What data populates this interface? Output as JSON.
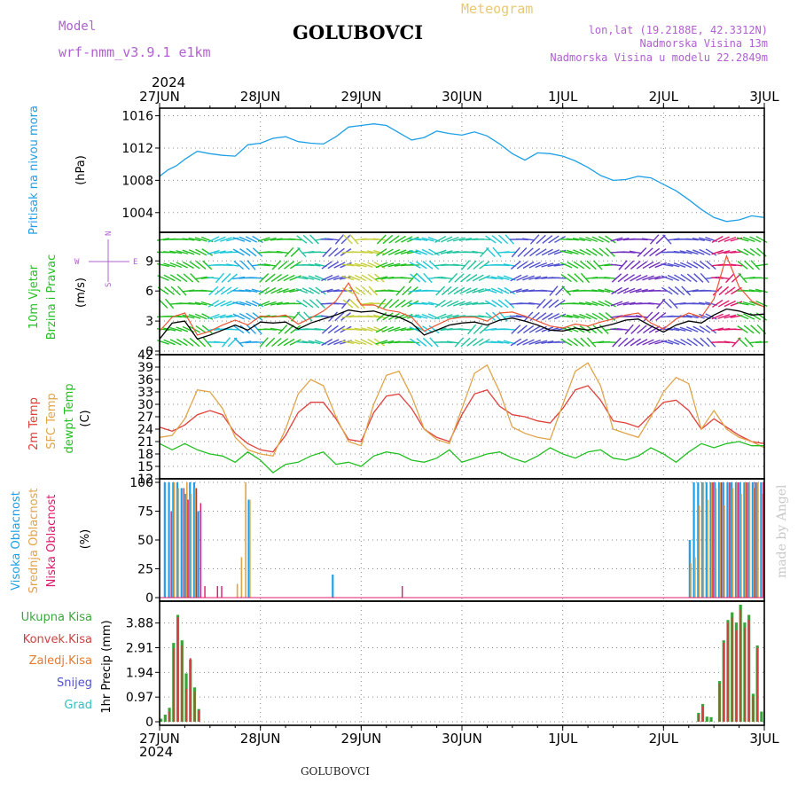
{
  "header": {
    "model_label": "Model",
    "model_name": "wrf-nmm_v3.9.1 e1km",
    "station": "GOLUBOVCI",
    "product": "Meteogram",
    "lonlat": "lon,lat (19.2188E, 42.3312N)",
    "elevation": "Nadmorska Visina 13m",
    "model_elevation": "Nadmorska Visina u modelu 22.2849m",
    "credit": "made by Angel",
    "footer_station": "GOLUBOVCI"
  },
  "colors": {
    "pressure": "#1ea0e6",
    "temp2m": "#e0403c",
    "sfc_temp": "#e0a44a",
    "dewpoint": "#22c022",
    "wind_speed": "#000000",
    "wind_gust": "#ee5533",
    "cloud_high": "#1ea0e6",
    "cloud_mid": "#e0a44a",
    "cloud_low": "#e0186c",
    "precip_total": "#3aa63a",
    "precip_conv": "#d04040",
    "precip_frozen": "#e87a2a",
    "snow": "#5050d0",
    "graupel": "#30c0c0",
    "title": "#b060d0",
    "product": "#e8c870"
  },
  "time_axis": {
    "year": "2024",
    "ticks": [
      "27JUN",
      "28JUN",
      "29JUN",
      "30JUN",
      "1JUL",
      "2JUL",
      "3JUL"
    ],
    "start_hour": 0,
    "end_hour": 144
  },
  "chart_data": [
    {
      "id": "pressure",
      "type": "line",
      "ylabel_name": "Pritisak na nivou mora",
      "ylabel_unit": "(hPa)",
      "ylim": [
        1002,
        1016.5
      ],
      "yticks": [
        1004,
        1008,
        1012,
        1016
      ],
      "grid": true,
      "x": [
        0,
        2,
        4,
        6,
        9,
        12,
        15,
        18,
        21,
        24,
        27,
        30,
        33,
        36,
        39,
        42,
        45,
        48,
        51,
        54,
        57,
        60,
        63,
        66,
        69,
        72,
        75,
        78,
        81,
        84,
        87,
        90,
        93,
        96,
        99,
        102,
        105,
        108,
        111,
        114,
        117,
        120,
        123,
        126,
        129,
        132,
        135,
        138,
        141,
        144
      ],
      "values": [
        1008.5,
        1009.3,
        1009.8,
        1010.6,
        1011.6,
        1011.3,
        1011.1,
        1011.0,
        1012.4,
        1012.6,
        1013.2,
        1013.4,
        1012.8,
        1012.6,
        1012.5,
        1013.4,
        1014.6,
        1014.8,
        1015.0,
        1014.8,
        1013.9,
        1013.0,
        1013.3,
        1014.1,
        1013.8,
        1013.6,
        1014.0,
        1013.5,
        1012.5,
        1011.3,
        1010.5,
        1011.4,
        1011.3,
        1011.0,
        1010.4,
        1009.6,
        1008.6,
        1008.0,
        1008.1,
        1008.5,
        1008.3,
        1007.5,
        1006.7,
        1005.6,
        1004.4,
        1003.4,
        1002.9,
        1003.1,
        1003.6,
        1003.4
      ]
    },
    {
      "id": "wind",
      "type": "line",
      "ylabel_name": [
        "10m Vjetar",
        "Brzina i Pravac"
      ],
      "ylabel_unit": "(m/s)",
      "compass": {
        "w": "W",
        "e": "E",
        "n": "N",
        "s": "S"
      },
      "ylim": [
        0,
        11.5
      ],
      "yticks": [
        0,
        3,
        6,
        9
      ],
      "grid": true,
      "series": [
        {
          "name": "speed",
          "x": [
            0,
            3,
            6,
            9,
            12,
            15,
            18,
            21,
            24,
            27,
            30,
            33,
            36,
            39,
            42,
            45,
            48,
            51,
            54,
            57,
            60,
            63,
            66,
            69,
            72,
            75,
            78,
            81,
            84,
            87,
            90,
            93,
            96,
            99,
            102,
            105,
            108,
            111,
            114,
            117,
            120,
            123,
            126,
            129,
            132,
            135,
            138,
            141,
            144
          ],
          "values": [
            1.2,
            2.8,
            3.0,
            1.2,
            1.6,
            2.1,
            2.6,
            2.1,
            2.9,
            2.8,
            2.9,
            2.2,
            2.8,
            3.2,
            3.6,
            4.1,
            3.9,
            4.0,
            3.6,
            3.4,
            2.8,
            1.6,
            2.1,
            2.6,
            2.8,
            2.9,
            2.6,
            3.1,
            3.3,
            3.0,
            2.6,
            2.1,
            2.0,
            2.3,
            2.1,
            2.4,
            2.7,
            3.1,
            3.2,
            2.5,
            1.9,
            2.6,
            3.0,
            2.8,
            3.6,
            4.2,
            4.0,
            3.6,
            3.7
          ]
        },
        {
          "name": "gust",
          "x": [
            0,
            3,
            6,
            9,
            12,
            15,
            18,
            21,
            24,
            27,
            30,
            33,
            36,
            39,
            42,
            45,
            48,
            51,
            54,
            57,
            60,
            63,
            66,
            69,
            72,
            75,
            78,
            81,
            84,
            87,
            90,
            93,
            96,
            99,
            102,
            105,
            108,
            111,
            114,
            117,
            120,
            123,
            126,
            129,
            132,
            135,
            138,
            141,
            144
          ],
          "values": [
            2.0,
            3.4,
            3.8,
            1.6,
            2.0,
            2.6,
            3.1,
            2.6,
            3.5,
            3.4,
            3.6,
            2.7,
            3.3,
            4.0,
            5.0,
            6.8,
            4.6,
            4.6,
            4.1,
            3.9,
            3.4,
            2.0,
            2.6,
            3.2,
            3.4,
            3.4,
            3.0,
            3.8,
            3.9,
            3.5,
            3.0,
            2.5,
            2.3,
            2.7,
            2.5,
            2.9,
            3.2,
            3.6,
            3.8,
            2.8,
            2.2,
            3.2,
            3.8,
            3.4,
            5.2,
            9.5,
            6.4,
            5.0,
            4.4
          ]
        }
      ],
      "barb_bands": [
        {
          "from": 0,
          "to": 12,
          "color": "#22c022"
        },
        {
          "from": 12,
          "to": 18,
          "color": "#1ec8d8"
        },
        {
          "from": 18,
          "to": 24,
          "color": "#1ea0e6"
        },
        {
          "from": 24,
          "to": 33,
          "color": "#22c022"
        },
        {
          "from": 33,
          "to": 39,
          "color": "#22c4a0"
        },
        {
          "from": 39,
          "to": 44,
          "color": "#5050d0"
        },
        {
          "from": 44,
          "to": 52,
          "color": "#c8d040"
        },
        {
          "from": 52,
          "to": 60,
          "color": "#22c022"
        },
        {
          "from": 60,
          "to": 66,
          "color": "#1ec8d8"
        },
        {
          "from": 66,
          "to": 78,
          "color": "#22c4a0"
        },
        {
          "from": 78,
          "to": 84,
          "color": "#1ec8d8"
        },
        {
          "from": 84,
          "to": 96,
          "color": "#5050d0"
        },
        {
          "from": 96,
          "to": 108,
          "color": "#22c022"
        },
        {
          "from": 108,
          "to": 120,
          "color": "#7030c0"
        },
        {
          "from": 120,
          "to": 132,
          "color": "#5050d0"
        },
        {
          "from": 132,
          "to": 138,
          "color": "#e0186c"
        },
        {
          "from": 138,
          "to": 144,
          "color": "#22c022"
        }
      ]
    },
    {
      "id": "temperature",
      "type": "line",
      "ylabel_names": [
        "2m Temp",
        "SFC Temp",
        "dewpt Temp"
      ],
      "ylabel_unit": "(C)",
      "ylim": [
        12,
        42
      ],
      "yticks": [
        12,
        15,
        18,
        21,
        24,
        27,
        30,
        33,
        36,
        39,
        42
      ],
      "grid": true,
      "series": [
        {
          "name": "2m Temp",
          "x": [
            0,
            3,
            6,
            9,
            12,
            15,
            18,
            21,
            24,
            27,
            30,
            33,
            36,
            39,
            42,
            45,
            48,
            51,
            54,
            57,
            60,
            63,
            66,
            69,
            72,
            75,
            78,
            81,
            84,
            87,
            90,
            93,
            96,
            99,
            102,
            105,
            108,
            111,
            114,
            117,
            120,
            123,
            126,
            129,
            132,
            135,
            138,
            141,
            144
          ],
          "values": [
            24.5,
            23.5,
            25.0,
            27.5,
            28.5,
            27.5,
            23.0,
            20.5,
            19.0,
            18.5,
            22.5,
            28.0,
            30.5,
            30.5,
            26.5,
            21.5,
            21.0,
            28.0,
            32.0,
            32.5,
            29.0,
            24.0,
            22.0,
            21.0,
            27.5,
            32.5,
            33.5,
            29.5,
            27.5,
            27.0,
            26.0,
            25.5,
            29.0,
            33.5,
            34.5,
            31.0,
            26.0,
            25.5,
            24.5,
            27.5,
            30.5,
            31.0,
            28.5,
            24.0,
            26.5,
            24.5,
            22.5,
            21.0,
            20.5
          ]
        },
        {
          "name": "SFC Temp",
          "x": [
            0,
            3,
            6,
            9,
            12,
            15,
            18,
            21,
            24,
            27,
            30,
            33,
            36,
            39,
            42,
            45,
            48,
            51,
            54,
            57,
            60,
            63,
            66,
            69,
            72,
            75,
            78,
            81,
            84,
            87,
            90,
            93,
            96,
            99,
            102,
            105,
            108,
            111,
            114,
            117,
            120,
            123,
            126,
            129,
            132,
            135,
            138,
            141,
            144
          ],
          "values": [
            22.0,
            22.5,
            26.5,
            33.5,
            33.0,
            29.0,
            22.0,
            19.0,
            18.0,
            17.5,
            24.0,
            32.5,
            36.0,
            34.5,
            27.0,
            21.0,
            20.0,
            30.0,
            37.0,
            38.0,
            32.0,
            24.0,
            21.5,
            20.5,
            29.0,
            37.5,
            39.5,
            33.0,
            24.5,
            23.0,
            22.0,
            21.5,
            30.0,
            38.0,
            40.0,
            34.5,
            24.0,
            23.0,
            22.0,
            27.0,
            33.0,
            36.5,
            35.0,
            24.0,
            28.5,
            24.0,
            22.0,
            21.0,
            19.5
          ]
        },
        {
          "name": "dewpt Temp",
          "x": [
            0,
            3,
            6,
            9,
            12,
            15,
            18,
            21,
            24,
            27,
            30,
            33,
            36,
            39,
            42,
            45,
            48,
            51,
            54,
            57,
            60,
            63,
            66,
            69,
            72,
            75,
            78,
            81,
            84,
            87,
            90,
            93,
            96,
            99,
            102,
            105,
            108,
            111,
            114,
            117,
            120,
            123,
            126,
            129,
            132,
            135,
            138,
            141,
            144
          ],
          "values": [
            20.5,
            19.0,
            20.5,
            19.0,
            18.0,
            17.5,
            16.0,
            18.5,
            16.5,
            13.5,
            15.5,
            16.0,
            17.5,
            18.5,
            15.5,
            16.0,
            15.0,
            17.5,
            18.5,
            18.0,
            16.5,
            16.0,
            17.0,
            19.0,
            16.0,
            17.0,
            18.0,
            18.5,
            17.0,
            16.0,
            17.5,
            19.5,
            18.0,
            17.0,
            18.5,
            19.0,
            17.0,
            16.5,
            17.5,
            19.5,
            18.0,
            16.0,
            18.5,
            20.5,
            19.5,
            20.5,
            21.0,
            20.0,
            20.0
          ]
        }
      ]
    },
    {
      "id": "clouds",
      "type": "bar",
      "ylabel_names": [
        "Visoka Oblacnost",
        "Srednja Oblacnost",
        "Niska Oblacnost"
      ],
      "ylabel_unit": "(%)",
      "ylim": [
        0,
        100
      ],
      "yticks": [
        0,
        25,
        50,
        75,
        100
      ],
      "grid": true,
      "series": [
        {
          "name": "Visoka Oblacnost",
          "x": [
            1,
            2,
            3,
            4,
            5,
            6,
            7,
            8,
            9,
            21,
            41,
            126,
            127,
            128,
            129,
            130,
            131,
            132,
            133,
            134,
            135,
            136,
            137,
            138,
            139,
            140,
            141,
            142,
            143
          ],
          "values": [
            100,
            100,
            100,
            100,
            95,
            90,
            100,
            100,
            75,
            85,
            20,
            50,
            100,
            100,
            100,
            100,
            100,
            100,
            100,
            100,
            100,
            100,
            100,
            100,
            100,
            100,
            100,
            100,
            100
          ]
        },
        {
          "name": "Srednja Oblacnost",
          "x": [
            3,
            4,
            6,
            7,
            8,
            18,
            19,
            20,
            21,
            126,
            127,
            128,
            129,
            130,
            131,
            132,
            133,
            134,
            135,
            136,
            137,
            138,
            139,
            140,
            141,
            142,
            143
          ],
          "values": [
            100,
            95,
            100,
            90,
            95,
            12,
            35,
            100,
            85,
            30,
            35,
            80,
            100,
            85,
            100,
            95,
            100,
            80,
            100,
            95,
            100,
            90,
            100,
            100,
            95,
            100,
            90
          ]
        },
        {
          "name": "Niska Oblacnost",
          "x": [
            2,
            5,
            6,
            8,
            9,
            10,
            13,
            14,
            57,
            131,
            133,
            135,
            137,
            139,
            141,
            143
          ],
          "values": [
            75,
            95,
            85,
            95,
            82,
            10,
            10,
            10,
            10,
            100,
            100,
            100,
            100,
            100,
            100,
            100
          ]
        }
      ]
    },
    {
      "id": "precip",
      "type": "bar",
      "ylabel_names": [
        "Ukupna Kisa",
        "Konvek.Kisa",
        "Zaledj.Kisa",
        "Snijeg",
        "Grad"
      ],
      "ylabel_unit": "1hr Precip (mm)",
      "ylim": [
        0,
        4.6
      ],
      "yticks": [
        0,
        0.97,
        1.94,
        2.91,
        3.88
      ],
      "grid": true,
      "series": [
        {
          "name": "Ukupna Kisa",
          "x": [
            0,
            1,
            2,
            3,
            4,
            5,
            6,
            7,
            8,
            9,
            128,
            129,
            130,
            131,
            133,
            134,
            135,
            136,
            137,
            138,
            139,
            140,
            141,
            142,
            143
          ],
          "values": [
            0.12,
            0.28,
            0.55,
            3.1,
            4.2,
            3.2,
            1.9,
            2.45,
            1.35,
            0.5,
            0.35,
            0.7,
            0.2,
            0.18,
            1.6,
            3.2,
            4.0,
            4.3,
            3.9,
            4.6,
            3.9,
            4.2,
            1.1,
            3.0,
            0.4
          ]
        },
        {
          "name": "Konvek.Kisa",
          "x": [
            2,
            3,
            4,
            5,
            6,
            7,
            8,
            9,
            128,
            129,
            133,
            134,
            135,
            136,
            137,
            138,
            139,
            140,
            141,
            142
          ],
          "values": [
            0.4,
            2.9,
            4.1,
            3.0,
            1.3,
            2.5,
            1.2,
            0.45,
            0.3,
            0.6,
            1.5,
            3.1,
            3.9,
            4.1,
            3.6,
            4.4,
            3.7,
            4.0,
            1.0,
            2.9
          ]
        }
      ]
    }
  ]
}
